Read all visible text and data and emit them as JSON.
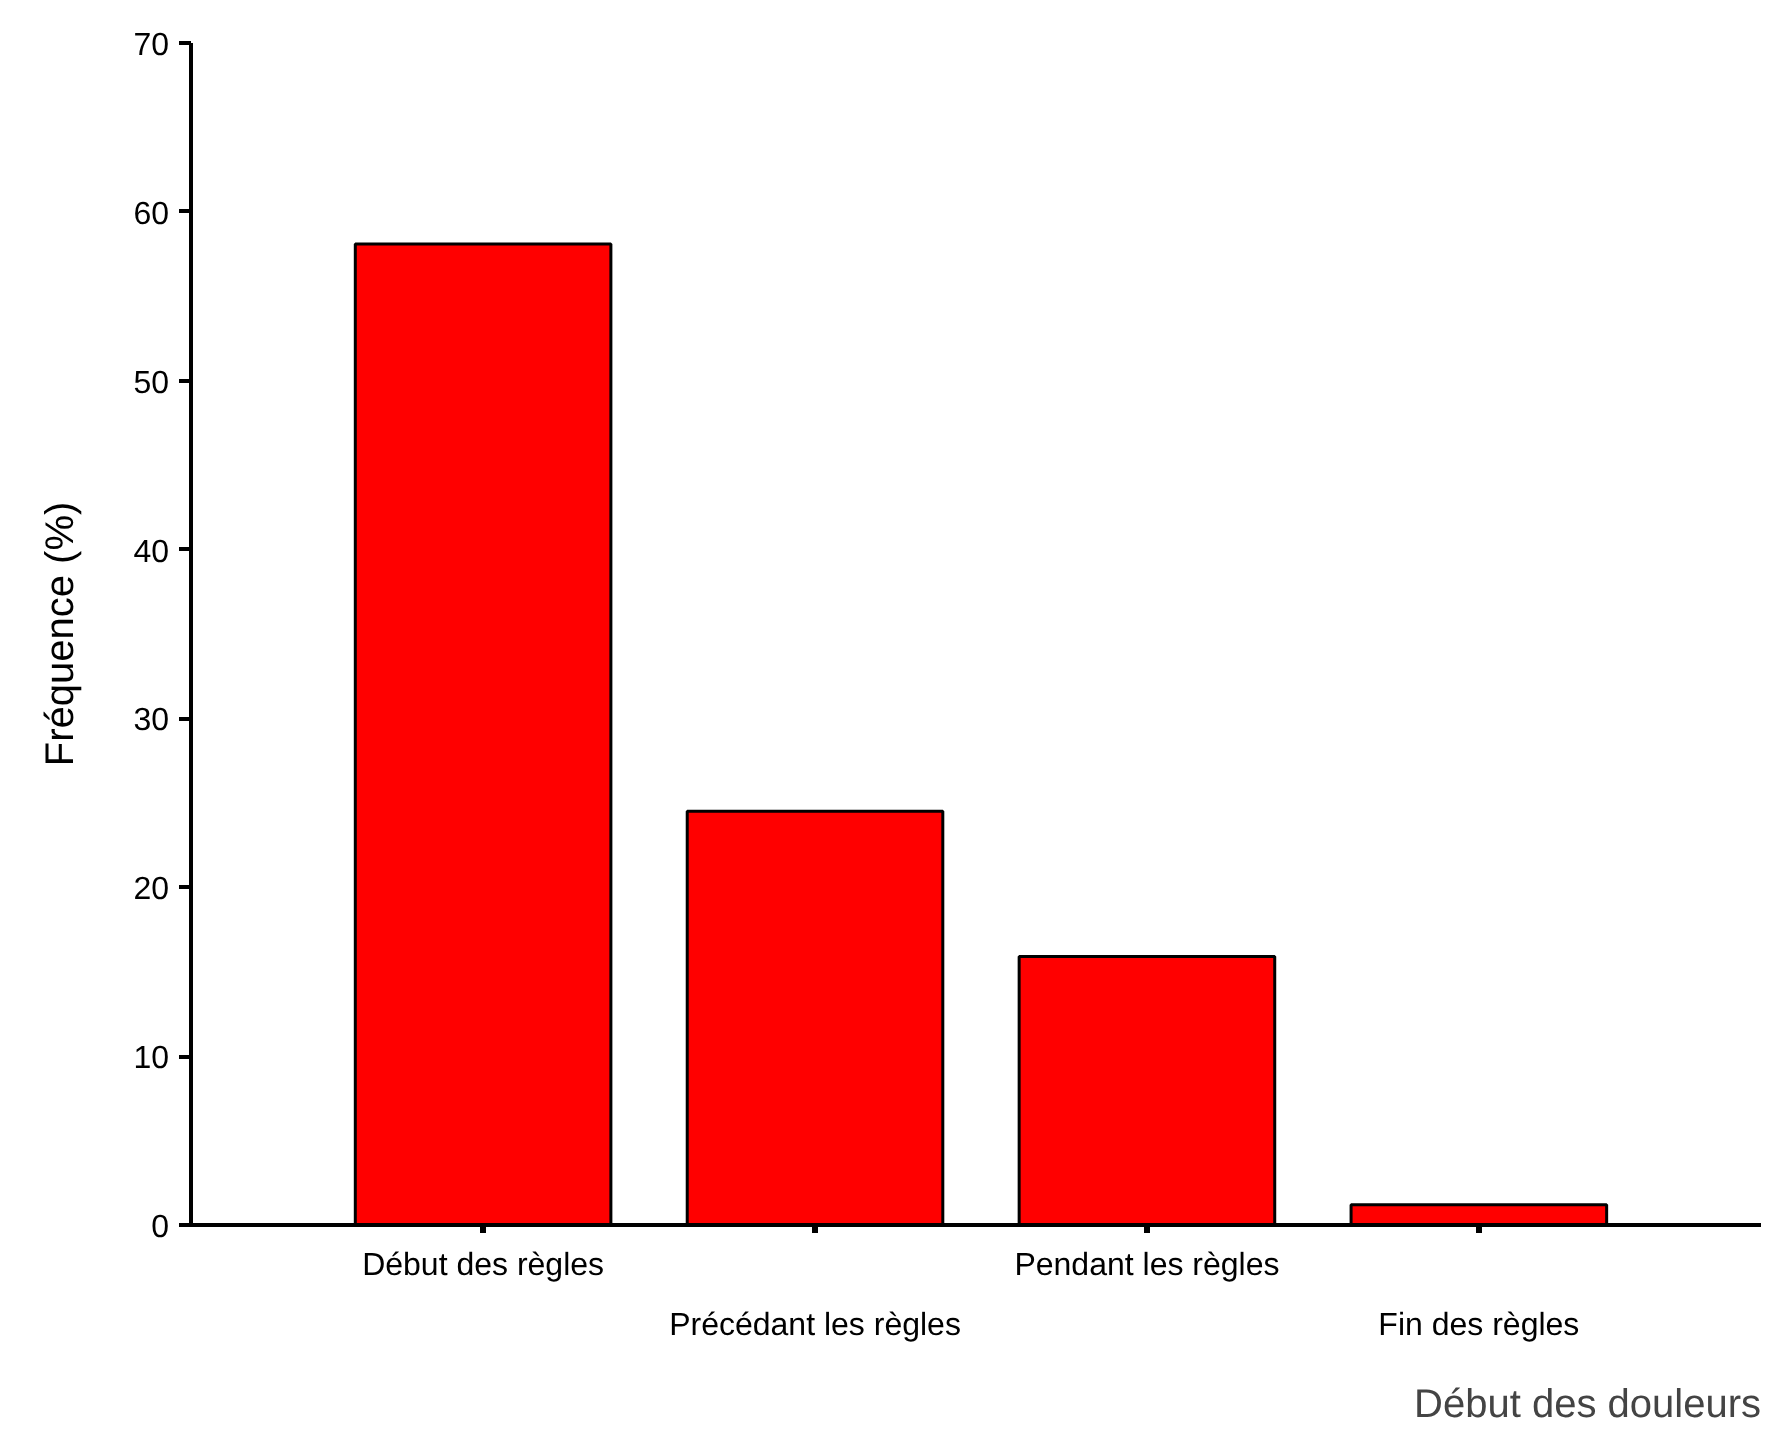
{
  "chart_data": {
    "type": "bar",
    "categories": [
      "Début des règles",
      "Précédant les règles",
      "Pendant les règles",
      "Fin des règles"
    ],
    "values": [
      58.1,
      24.5,
      15.9,
      1.2
    ],
    "color": "#ff0000",
    "ylim": [
      0,
      70
    ],
    "yticks": [
      0,
      10,
      20,
      30,
      40,
      50,
      60,
      70
    ],
    "xlabel": "Début des douleurs",
    "ylabel": "Fréquence (%)",
    "grid": false
  }
}
